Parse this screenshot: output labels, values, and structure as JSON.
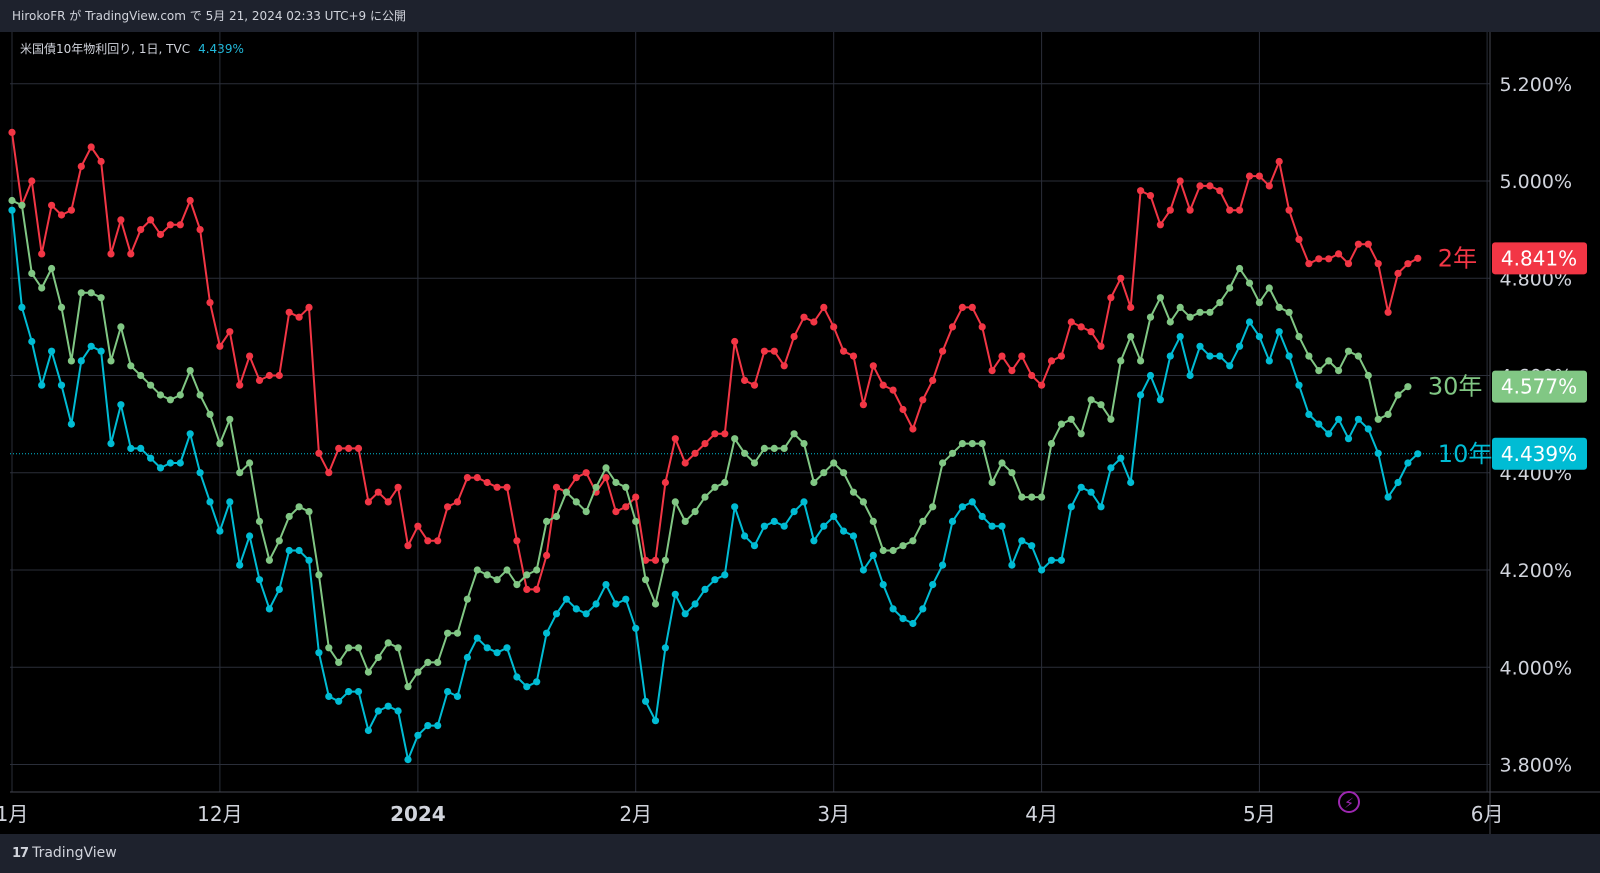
{
  "header": {
    "publish_text": "HirokoFR が TradingView.com で 5月 21, 2024 02:33 UTC+9 に公開"
  },
  "legend": {
    "symbol": "米国債10年物利回り, 1日, TVC",
    "value": "4.439%"
  },
  "footer": {
    "brand": "TradingView",
    "logo_icon": "tradingview-logo-icon"
  },
  "colors": {
    "background": "#000000",
    "grid": "#2a2e39",
    "y2": "#f23645",
    "y30": "#81c784",
    "y10": "#00bcd4"
  },
  "chart_data": {
    "type": "line",
    "y_ticks": [
      "5.200%",
      "5.000%",
      "4.800%",
      "4.600%",
      "4.400%",
      "4.200%",
      "4.000%",
      "3.800%"
    ],
    "y_tick_values": [
      5.2,
      5.0,
      4.8,
      4.6,
      4.4,
      4.2,
      4.0,
      3.8
    ],
    "ylim": [
      3.77,
      5.32
    ],
    "x_ticks": [
      "1月",
      "12月",
      "2024",
      "2月",
      "3月",
      "4月",
      "5月",
      "6月"
    ],
    "x_tick_index": [
      0,
      21,
      41,
      63,
      83,
      104,
      126,
      149
    ],
    "grid": true,
    "series": [
      {
        "name": "2年",
        "color_key": "y2",
        "last_value": "4.841%",
        "values": [
          5.1,
          4.95,
          5.0,
          4.85,
          4.95,
          4.93,
          4.94,
          5.03,
          5.07,
          5.04,
          4.85,
          4.92,
          4.85,
          4.9,
          4.92,
          4.89,
          4.91,
          4.91,
          4.96,
          4.9,
          4.75,
          4.66,
          4.69,
          4.58,
          4.64,
          4.59,
          4.6,
          4.6,
          4.73,
          4.72,
          4.74,
          4.44,
          4.4,
          4.45,
          4.45,
          4.45,
          4.34,
          4.36,
          4.34,
          4.37,
          4.25,
          4.29,
          4.26,
          4.26,
          4.33,
          4.34,
          4.39,
          4.39,
          4.38,
          4.37,
          4.37,
          4.26,
          4.16,
          4.16,
          4.23,
          4.37,
          4.36,
          4.39,
          4.4,
          4.36,
          4.39,
          4.32,
          4.33,
          4.35,
          4.22,
          4.22,
          4.38,
          4.47,
          4.42,
          4.44,
          4.46,
          4.48,
          4.48,
          4.67,
          4.59,
          4.58,
          4.65,
          4.65,
          4.62,
          4.68,
          4.72,
          4.71,
          4.74,
          4.7,
          4.65,
          4.64,
          4.54,
          4.62,
          4.58,
          4.57,
          4.53,
          4.49,
          4.55,
          4.59,
          4.65,
          4.7,
          4.74,
          4.74,
          4.7,
          4.61,
          4.64,
          4.61,
          4.64,
          4.6,
          4.58,
          4.63,
          4.64,
          4.71,
          4.7,
          4.69,
          4.66,
          4.76,
          4.8,
          4.74,
          4.98,
          4.97,
          4.91,
          4.94,
          5.0,
          4.94,
          4.99,
          4.99,
          4.98,
          4.94,
          4.94,
          5.01,
          5.01,
          4.99,
          5.04,
          4.94,
          4.88,
          4.83,
          4.84,
          4.84,
          4.85,
          4.83,
          4.87,
          4.87,
          4.83,
          4.73,
          4.81,
          4.83,
          4.841
        ]
      },
      {
        "name": "30年",
        "color_key": "y30",
        "last_value": "4.577%",
        "values": [
          4.96,
          4.95,
          4.81,
          4.78,
          4.82,
          4.74,
          4.63,
          4.77,
          4.77,
          4.76,
          4.63,
          4.7,
          4.62,
          4.6,
          4.58,
          4.56,
          4.55,
          4.56,
          4.61,
          4.56,
          4.52,
          4.46,
          4.51,
          4.4,
          4.42,
          4.3,
          4.22,
          4.26,
          4.31,
          4.33,
          4.32,
          4.19,
          4.04,
          4.01,
          4.04,
          4.04,
          3.99,
          4.02,
          4.05,
          4.04,
          3.96,
          3.99,
          4.01,
          4.01,
          4.07,
          4.07,
          4.14,
          4.2,
          4.19,
          4.18,
          4.2,
          4.17,
          4.19,
          4.2,
          4.3,
          4.31,
          4.36,
          4.34,
          4.32,
          4.37,
          4.41,
          4.38,
          4.37,
          4.3,
          4.18,
          4.13,
          4.22,
          4.34,
          4.3,
          4.32,
          4.35,
          4.37,
          4.38,
          4.47,
          4.44,
          4.42,
          4.45,
          4.45,
          4.45,
          4.48,
          4.46,
          4.38,
          4.4,
          4.42,
          4.4,
          4.36,
          4.34,
          4.3,
          4.24,
          4.24,
          4.25,
          4.26,
          4.3,
          4.33,
          4.42,
          4.44,
          4.46,
          4.46,
          4.46,
          4.38,
          4.42,
          4.4,
          4.35,
          4.35,
          4.35,
          4.46,
          4.5,
          4.51,
          4.48,
          4.55,
          4.54,
          4.51,
          4.63,
          4.68,
          4.63,
          4.72,
          4.76,
          4.71,
          4.74,
          4.72,
          4.73,
          4.73,
          4.75,
          4.78,
          4.82,
          4.79,
          4.75,
          4.78,
          4.74,
          4.73,
          4.68,
          4.64,
          4.61,
          4.63,
          4.61,
          4.65,
          4.64,
          4.6,
          4.51,
          4.52,
          4.56,
          4.577
        ]
      },
      {
        "name": "10年",
        "color_key": "y10",
        "last_value": "4.439%",
        "values": [
          4.94,
          4.74,
          4.67,
          4.58,
          4.65,
          4.58,
          4.5,
          4.63,
          4.66,
          4.65,
          4.46,
          4.54,
          4.45,
          4.45,
          4.43,
          4.41,
          4.42,
          4.42,
          4.48,
          4.4,
          4.34,
          4.28,
          4.34,
          4.21,
          4.27,
          4.18,
          4.12,
          4.16,
          4.24,
          4.24,
          4.22,
          4.03,
          3.94,
          3.93,
          3.95,
          3.95,
          3.87,
          3.91,
          3.92,
          3.91,
          3.81,
          3.86,
          3.88,
          3.88,
          3.95,
          3.94,
          4.02,
          4.06,
          4.04,
          4.03,
          4.04,
          3.98,
          3.96,
          3.97,
          4.07,
          4.11,
          4.14,
          4.12,
          4.11,
          4.13,
          4.17,
          4.13,
          4.14,
          4.08,
          3.93,
          3.89,
          4.04,
          4.15,
          4.11,
          4.13,
          4.16,
          4.18,
          4.19,
          4.33,
          4.27,
          4.25,
          4.29,
          4.3,
          4.29,
          4.32,
          4.34,
          4.26,
          4.29,
          4.31,
          4.28,
          4.27,
          4.2,
          4.23,
          4.17,
          4.12,
          4.1,
          4.09,
          4.12,
          4.17,
          4.21,
          4.3,
          4.33,
          4.34,
          4.31,
          4.29,
          4.29,
          4.21,
          4.26,
          4.25,
          4.2,
          4.22,
          4.22,
          4.33,
          4.37,
          4.36,
          4.33,
          4.41,
          4.43,
          4.38,
          4.56,
          4.6,
          4.55,
          4.64,
          4.68,
          4.6,
          4.66,
          4.64,
          4.64,
          4.62,
          4.66,
          4.71,
          4.68,
          4.63,
          4.69,
          4.64,
          4.58,
          4.52,
          4.5,
          4.48,
          4.51,
          4.47,
          4.51,
          4.49,
          4.44,
          4.35,
          4.38,
          4.42,
          4.439
        ]
      }
    ]
  }
}
